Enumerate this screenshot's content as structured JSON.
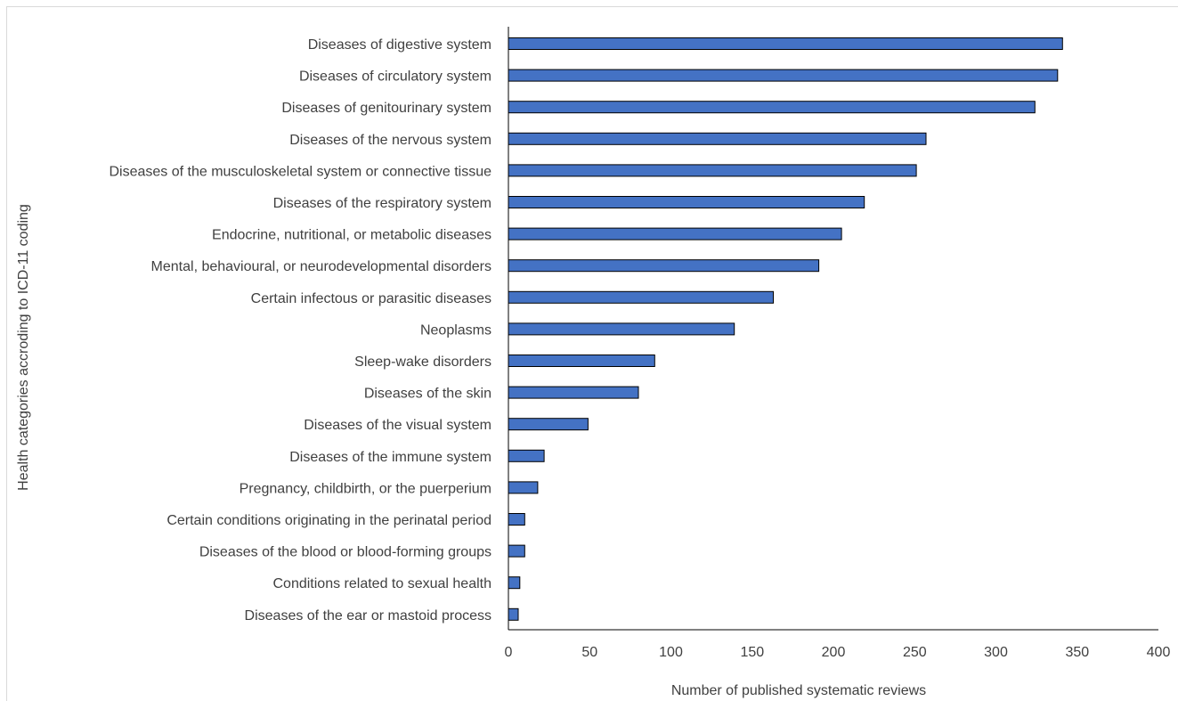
{
  "chart_data": {
    "type": "bar",
    "orientation": "horizontal",
    "title": "",
    "xlabel": "Number of published systematic reviews",
    "ylabel": "Health categories accroding to ICD-11 coding",
    "xlim": [
      0,
      400
    ],
    "xticks": [
      0,
      50,
      100,
      150,
      200,
      250,
      300,
      350,
      400
    ],
    "grid": false,
    "bar_color": "#4472c4",
    "bar_edge_color": "#000000",
    "categories": [
      "Diseases of digestive system",
      "Diseases of circulatory system",
      "Diseases of genitourinary system",
      "Diseases of the nervous system",
      "Diseases of the musculoskeletal system or connective tissue",
      "Diseases of the respiratory system",
      "Endocrine, nutritional, or metabolic diseases",
      "Mental, behavioural, or neurodevelopmental disorders",
      "Certain infectous or parasitic diseases",
      "Neoplasms",
      "Sleep-wake disorders",
      "Diseases of the skin",
      "Diseases of the visual system",
      "Diseases of the immune system",
      "Pregnancy, childbirth, or the puerperium",
      "Certain conditions originating in the perinatal period",
      "Diseases of the blood or blood-forming groups",
      "Conditions related to sexual health",
      "Diseases of the ear or mastoid process"
    ],
    "values": [
      341,
      338,
      324,
      257,
      251,
      219,
      205,
      191,
      163,
      139,
      90,
      80,
      49,
      22,
      18,
      10,
      10,
      7,
      6
    ]
  }
}
